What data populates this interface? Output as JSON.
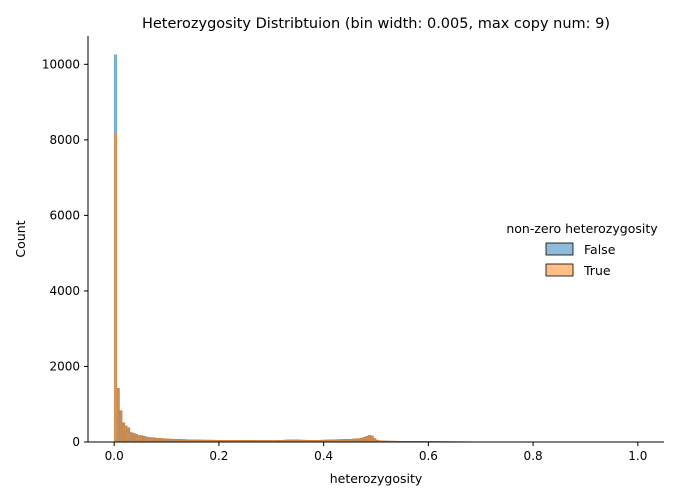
{
  "chart_data": {
    "type": "histogram",
    "title": "Heterozygosity Distribtuion (bin width: 0.005, max copy num: 9)",
    "xlabel": "heterozygosity",
    "ylabel": "Count",
    "xlim": [
      -0.05,
      1.05
    ],
    "ylim": [
      0,
      10750
    ],
    "x_ticks": [
      0.0,
      0.2,
      0.4,
      0.6,
      0.8,
      1.0
    ],
    "x_tick_labels": [
      "0.0",
      "0.2",
      "0.4",
      "0.6",
      "0.8",
      "1.0"
    ],
    "y_ticks": [
      0,
      2000,
      4000,
      6000,
      8000,
      10000
    ],
    "y_tick_labels": [
      "0",
      "2000",
      "4000",
      "6000",
      "8000",
      "10000"
    ],
    "bin_width": 0.005,
    "legend": {
      "title": "non-zero heterozygosity",
      "placement": "center-right",
      "entries": [
        "False",
        "True"
      ]
    },
    "colors": {
      "False": "#1f77b4",
      "True": "#ff7f0e"
    },
    "series": [
      {
        "name": "False",
        "bin_start": 0.0,
        "values": [
          10250
        ]
      },
      {
        "name": "True",
        "bin_start": 0.0,
        "values": [
          8150,
          1420,
          830,
          510,
          430,
          380,
          250,
          230,
          200,
          180,
          170,
          150,
          130,
          120,
          115,
          110,
          100,
          95,
          90,
          85,
          80,
          78,
          75,
          72,
          70,
          68,
          65,
          63,
          60,
          58,
          56,
          55,
          54,
          53,
          52,
          51,
          50,
          50,
          49,
          48,
          48,
          47,
          47,
          46,
          46,
          45,
          45,
          45,
          44,
          44,
          44,
          43,
          43,
          43,
          42,
          42,
          42,
          41,
          41,
          41,
          40,
          40,
          42,
          45,
          48,
          52,
          55,
          58,
          60,
          58,
          55,
          52,
          50,
          48,
          47,
          46,
          45,
          46,
          48,
          50,
          52,
          55,
          58,
          60,
          62,
          64,
          66,
          68,
          70,
          72,
          75,
          80,
          85,
          90,
          100,
          120,
          150,
          180,
          160,
          90,
          50,
          35,
          30,
          28,
          26,
          25,
          24,
          23,
          22,
          21,
          20,
          20,
          19,
          19,
          18,
          18,
          17,
          17,
          16,
          16,
          15,
          15,
          14,
          14,
          13,
          13,
          12,
          12,
          11,
          11,
          10,
          10,
          10,
          9,
          9,
          9,
          8,
          8,
          8,
          7,
          7,
          7,
          6,
          6,
          6,
          5,
          5,
          5,
          5,
          4,
          4,
          4,
          4,
          4,
          3,
          3,
          3,
          3,
          3,
          3,
          2,
          2,
          2,
          2,
          2,
          2,
          2,
          2,
          2,
          2,
          1,
          1,
          1,
          1,
          1,
          1,
          1,
          1,
          1,
          1,
          1,
          1,
          1,
          1,
          1,
          1,
          1,
          1,
          1,
          1,
          1,
          1,
          1,
          1,
          1,
          1,
          1,
          1,
          1,
          1
        ]
      }
    ]
  }
}
